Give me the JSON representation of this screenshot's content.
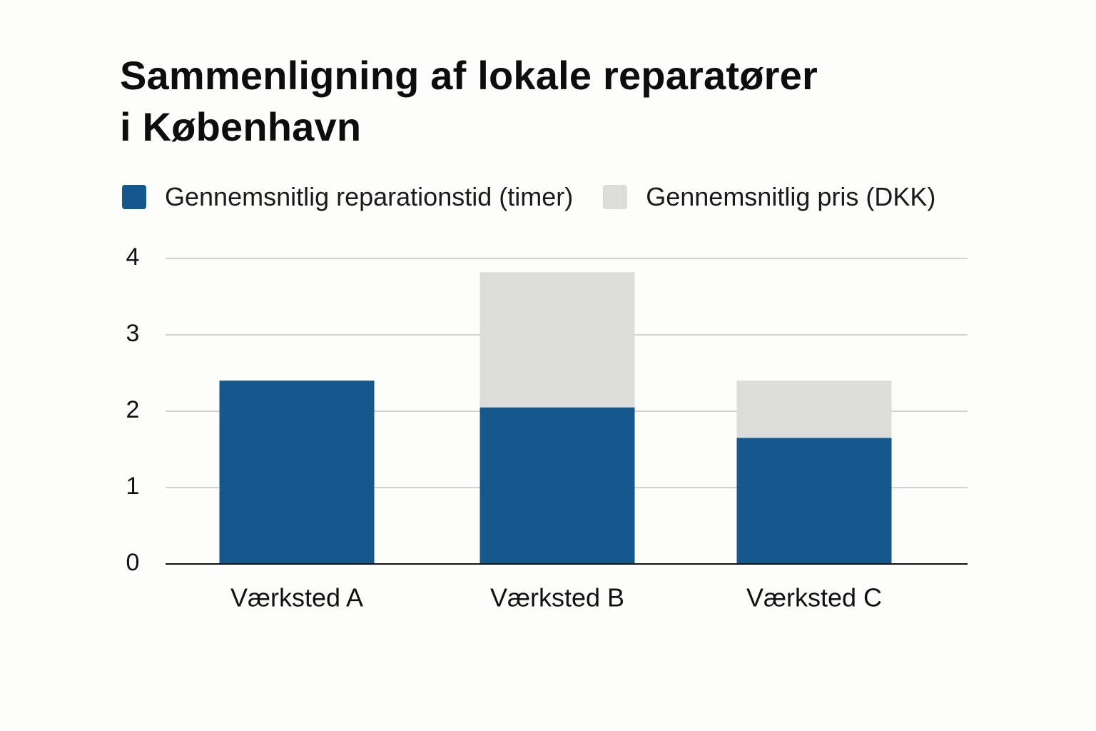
{
  "chart_data": {
    "type": "bar",
    "stacked": true,
    "title_lines": [
      "Sammenligning af lokale reparatører",
      "i København"
    ],
    "categories": [
      "Værksted A",
      "Værksted B",
      "Værksted C"
    ],
    "series": [
      {
        "name": "Gennemsnitlig reparationstid (timer)",
        "color": "#15588c",
        "values": [
          2.4,
          2.05,
          1.65
        ]
      },
      {
        "name": "Gennemsnitlig pris (DKK)",
        "color": "#dcdcda",
        "values": [
          0,
          1.77,
          0.75
        ]
      }
    ],
    "y_ticks": [
      "0",
      "1",
      "2",
      "3",
      "4"
    ],
    "ylim": [
      0,
      4
    ],
    "grid": true,
    "legend_position": "top-left"
  }
}
